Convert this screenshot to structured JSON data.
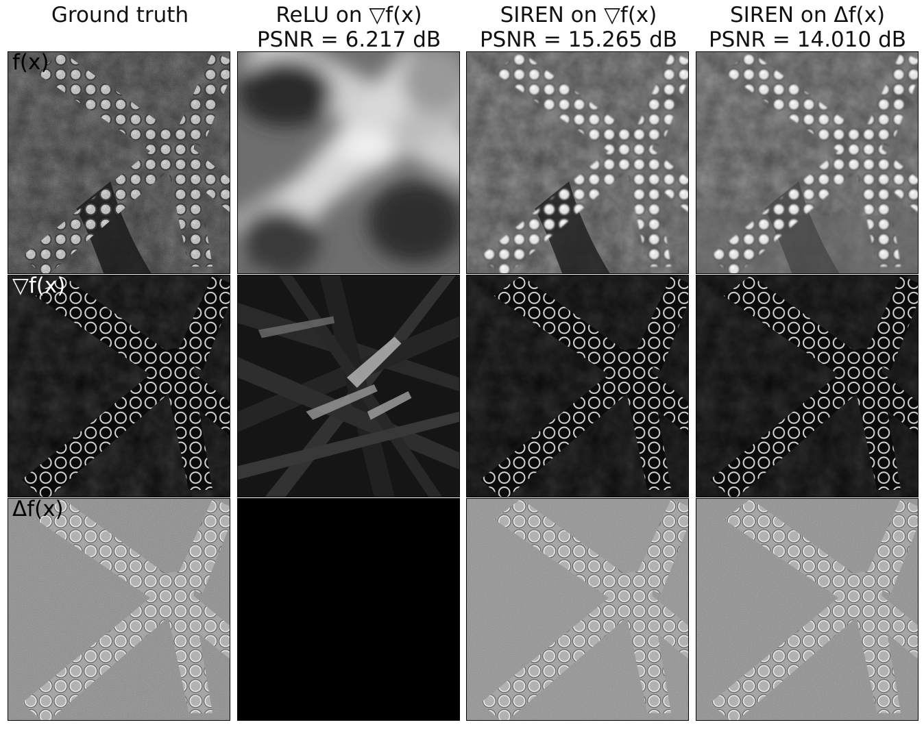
{
  "columns": [
    {
      "title_line1": "Ground truth",
      "title_line2": ""
    },
    {
      "title_line1": "ReLU on ▽f(x)",
      "title_line2": "PSNR = 6.217 dB"
    },
    {
      "title_line1": "SIREN on ▽f(x)",
      "title_line2": "PSNR = 15.265 dB"
    },
    {
      "title_line1": "SIREN on Δf(x)",
      "title_line2": "PSNR = 14.010 dB"
    }
  ],
  "rows": [
    {
      "label": "f(x)"
    },
    {
      "label": "▽f(x)"
    },
    {
      "label": "Δf(x)"
    }
  ],
  "panels": [
    [
      {
        "content": "starfish-image"
      },
      {
        "content": "relu-blurry-reconstruction"
      },
      {
        "content": "starfish-image-siren"
      },
      {
        "content": "starfish-image-siren-laplace"
      }
    ],
    [
      {
        "content": "starfish-gradient"
      },
      {
        "content": "relu-gradient-streaks"
      },
      {
        "content": "starfish-gradient-siren"
      },
      {
        "content": "starfish-gradient-siren-laplace"
      }
    ],
    [
      {
        "content": "starfish-laplacian"
      },
      {
        "content": "relu-laplacian-black"
      },
      {
        "content": "starfish-laplacian-siren"
      },
      {
        "content": "starfish-laplacian-siren-laplace"
      }
    ]
  ],
  "colors": {
    "background": "#ffffff",
    "relu_laplacian": "#000000",
    "laplacian_gray": "#a8a8a8",
    "gradient_dark": "#0a0a0a"
  }
}
